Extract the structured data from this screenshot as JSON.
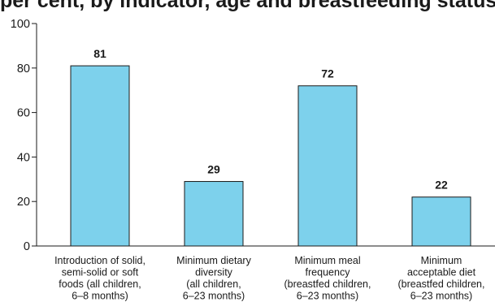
{
  "title_visible": "per cent, by indicator, age and breastfeeding status",
  "chart_data": {
    "type": "bar",
    "title": "",
    "xlabel": "",
    "ylabel": "",
    "ylim": [
      0,
      100
    ],
    "yticks": [
      0,
      20,
      40,
      60,
      80,
      100
    ],
    "grid": false,
    "legend": "none",
    "categories": [
      [
        "Introduction of solid,",
        "semi-solid or soft",
        "foods (all children,",
        "6–8 months)"
      ],
      [
        "Minimum dietary",
        "diversity",
        "(all children,",
        "6–23 months)"
      ],
      [
        "Minimum meal",
        "frequency",
        "(breastfed children,",
        "6–23 months)"
      ],
      [
        "Minimum",
        "acceptable diet",
        "(breastfed children,",
        "6–23 months)"
      ]
    ],
    "values": [
      81,
      29,
      72,
      22
    ],
    "bar_color": "#7dd1ec",
    "bar_edge_color": "#1a1a1a"
  }
}
